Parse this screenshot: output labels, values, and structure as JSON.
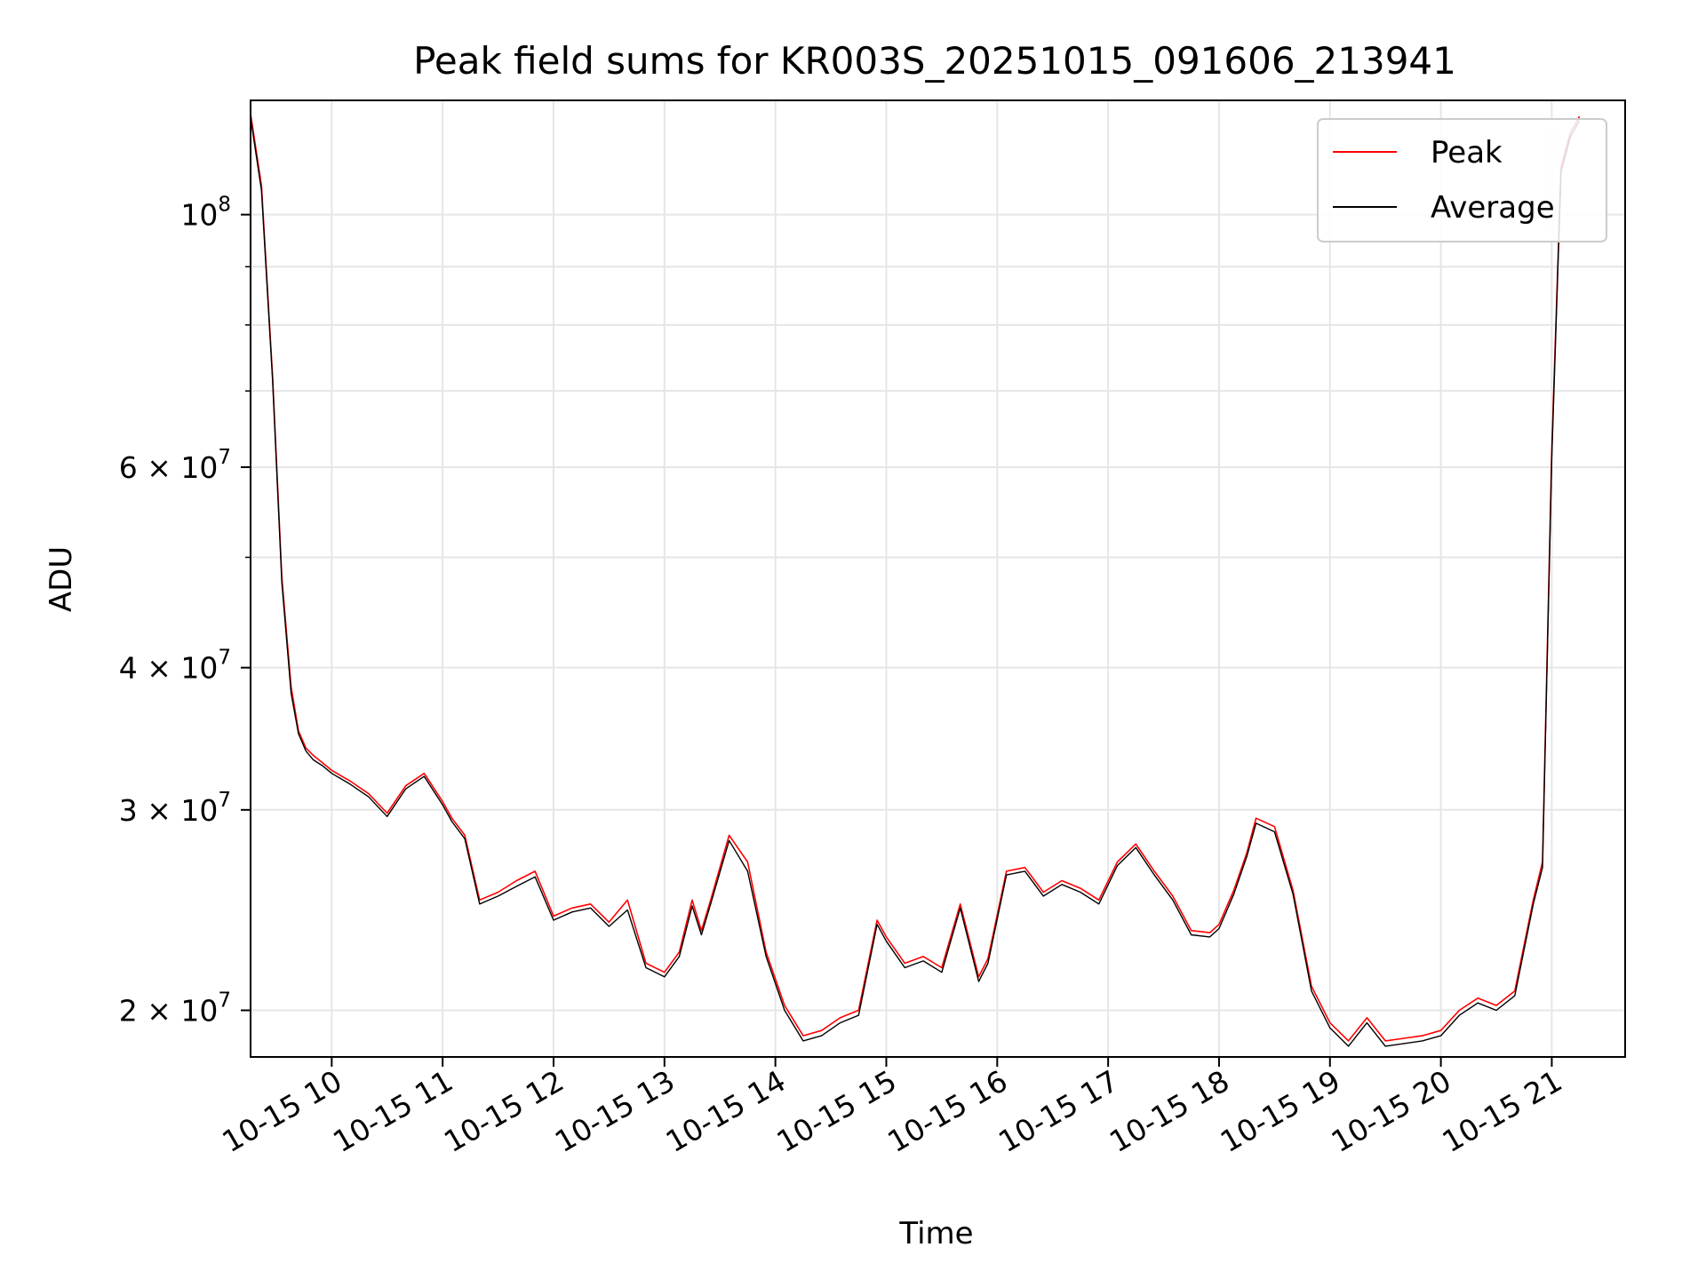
{
  "chart_data": {
    "type": "line",
    "title": "Peak field sums for KR003S_20251015_091606_213941",
    "xlabel": "Time",
    "ylabel": "ADU",
    "yscale": "log",
    "xlim": [
      "2025-10-15T09:16:06",
      "2025-10-15T21:39:41"
    ],
    "ylim": [
      18200000,
      126000000
    ],
    "grid": true,
    "legend_position": "top-right",
    "x_ticks": [
      {
        "value": "2025-10-15T10:00",
        "label": "10-15 10"
      },
      {
        "value": "2025-10-15T11:00",
        "label": "10-15 11"
      },
      {
        "value": "2025-10-15T12:00",
        "label": "10-15 12"
      },
      {
        "value": "2025-10-15T13:00",
        "label": "10-15 13"
      },
      {
        "value": "2025-10-15T14:00",
        "label": "10-15 14"
      },
      {
        "value": "2025-10-15T15:00",
        "label": "10-15 15"
      },
      {
        "value": "2025-10-15T16:00",
        "label": "10-15 16"
      },
      {
        "value": "2025-10-15T17:00",
        "label": "10-15 17"
      },
      {
        "value": "2025-10-15T18:00",
        "label": "10-15 18"
      },
      {
        "value": "2025-10-15T19:00",
        "label": "10-15 19"
      },
      {
        "value": "2025-10-15T20:00",
        "label": "10-15 20"
      },
      {
        "value": "2025-10-15T21:00",
        "label": "10-15 21"
      }
    ],
    "y_ticks": [
      {
        "value": 20000000,
        "mantissa": "2",
        "exponent": "7"
      },
      {
        "value": 30000000,
        "mantissa": "3",
        "exponent": "7"
      },
      {
        "value": 40000000,
        "mantissa": "4",
        "exponent": "7"
      },
      {
        "value": 60000000,
        "mantissa": "6",
        "exponent": "7"
      },
      {
        "value": 100000000,
        "mantissa": "",
        "exponent": "8"
      }
    ],
    "y_minor_ticks": [
      50000000,
      70000000,
      80000000,
      90000000
    ],
    "times_symbol": "×",
    "base": "10",
    "series": [
      {
        "name": "Peak",
        "color": "#ff0000",
        "x": [
          "2025-10-15T09:16",
          "2025-10-15T09:22",
          "2025-10-15T09:28",
          "2025-10-15T09:33",
          "2025-10-15T09:38",
          "2025-10-15T09:42",
          "2025-10-15T09:46",
          "2025-10-15T09:50",
          "2025-10-15T09:55",
          "2025-10-15T10:00",
          "2025-10-15T10:10",
          "2025-10-15T10:20",
          "2025-10-15T10:30",
          "2025-10-15T10:40",
          "2025-10-15T10:50",
          "2025-10-15T11:00",
          "2025-10-15T11:05",
          "2025-10-15T11:12",
          "2025-10-15T11:20",
          "2025-10-15T11:30",
          "2025-10-15T11:40",
          "2025-10-15T11:50",
          "2025-10-15T12:00",
          "2025-10-15T12:10",
          "2025-10-15T12:20",
          "2025-10-15T12:30",
          "2025-10-15T12:40",
          "2025-10-15T12:50",
          "2025-10-15T13:00",
          "2025-10-15T13:08",
          "2025-10-15T13:15",
          "2025-10-15T13:20",
          "2025-10-15T13:25",
          "2025-10-15T13:35",
          "2025-10-15T13:45",
          "2025-10-15T13:55",
          "2025-10-15T14:05",
          "2025-10-15T14:15",
          "2025-10-15T14:25",
          "2025-10-15T14:35",
          "2025-10-15T14:45",
          "2025-10-15T14:55",
          "2025-10-15T15:00",
          "2025-10-15T15:10",
          "2025-10-15T15:20",
          "2025-10-15T15:30",
          "2025-10-15T15:40",
          "2025-10-15T15:50",
          "2025-10-15T15:55",
          "2025-10-15T16:05",
          "2025-10-15T16:15",
          "2025-10-15T16:25",
          "2025-10-15T16:35",
          "2025-10-15T16:45",
          "2025-10-15T16:55",
          "2025-10-15T17:05",
          "2025-10-15T17:15",
          "2025-10-15T17:25",
          "2025-10-15T17:35",
          "2025-10-15T17:45",
          "2025-10-15T17:55",
          "2025-10-15T18:00",
          "2025-10-15T18:08",
          "2025-10-15T18:15",
          "2025-10-15T18:20",
          "2025-10-15T18:30",
          "2025-10-15T18:40",
          "2025-10-15T18:50",
          "2025-10-15T19:00",
          "2025-10-15T19:10",
          "2025-10-15T19:20",
          "2025-10-15T19:30",
          "2025-10-15T19:40",
          "2025-10-15T19:50",
          "2025-10-15T20:00",
          "2025-10-15T20:10",
          "2025-10-15T20:20",
          "2025-10-15T20:30",
          "2025-10-15T20:40",
          "2025-10-15T20:50",
          "2025-10-15T20:55",
          "2025-10-15T21:00",
          "2025-10-15T21:05",
          "2025-10-15T21:10",
          "2025-10-15T21:15"
        ],
        "y": [
          123000000,
          106000000,
          72000000,
          48000000,
          38500000,
          35200000,
          34000000,
          33500000,
          33000000,
          32500000,
          31800000,
          31000000,
          29800000,
          31500000,
          32300000,
          30500000,
          29500000,
          28500000,
          25000000,
          25400000,
          26000000,
          26500000,
          24200000,
          24600000,
          24800000,
          23900000,
          25000000,
          22000000,
          21600000,
          22500000,
          25000000,
          23500000,
          25000000,
          28500000,
          27000000,
          22500000,
          20200000,
          19000000,
          19200000,
          19700000,
          20000000,
          24000000,
          23200000,
          22000000,
          22300000,
          21800000,
          24800000,
          21400000,
          22200000,
          26500000,
          26700000,
          25400000,
          26000000,
          25600000,
          25000000,
          27000000,
          28000000,
          26500000,
          25200000,
          23500000,
          23400000,
          23800000,
          25500000,
          27500000,
          29500000,
          29000000,
          25500000,
          21000000,
          19500000,
          18800000,
          19700000,
          18800000,
          18900000,
          19000000,
          19200000,
          20000000,
          20500000,
          20200000,
          20800000,
          25000000,
          27000000,
          62000000,
          110000000,
          118000000,
          122000000
        ]
      },
      {
        "name": "Average",
        "color": "#000000",
        "x": [
          "2025-10-15T09:16",
          "2025-10-15T09:22",
          "2025-10-15T09:28",
          "2025-10-15T09:33",
          "2025-10-15T09:38",
          "2025-10-15T09:42",
          "2025-10-15T09:46",
          "2025-10-15T09:50",
          "2025-10-15T09:55",
          "2025-10-15T10:00",
          "2025-10-15T10:10",
          "2025-10-15T10:20",
          "2025-10-15T10:30",
          "2025-10-15T10:40",
          "2025-10-15T10:50",
          "2025-10-15T11:00",
          "2025-10-15T11:05",
          "2025-10-15T11:12",
          "2025-10-15T11:20",
          "2025-10-15T11:30",
          "2025-10-15T11:40",
          "2025-10-15T11:50",
          "2025-10-15T12:00",
          "2025-10-15T12:10",
          "2025-10-15T12:20",
          "2025-10-15T12:30",
          "2025-10-15T12:40",
          "2025-10-15T12:50",
          "2025-10-15T13:00",
          "2025-10-15T13:08",
          "2025-10-15T13:15",
          "2025-10-15T13:20",
          "2025-10-15T13:25",
          "2025-10-15T13:35",
          "2025-10-15T13:45",
          "2025-10-15T13:55",
          "2025-10-15T14:05",
          "2025-10-15T14:15",
          "2025-10-15T14:25",
          "2025-10-15T14:35",
          "2025-10-15T14:45",
          "2025-10-15T14:55",
          "2025-10-15T15:00",
          "2025-10-15T15:10",
          "2025-10-15T15:20",
          "2025-10-15T15:30",
          "2025-10-15T15:40",
          "2025-10-15T15:50",
          "2025-10-15T15:55",
          "2025-10-15T16:05",
          "2025-10-15T16:15",
          "2025-10-15T16:25",
          "2025-10-15T16:35",
          "2025-10-15T16:45",
          "2025-10-15T16:55",
          "2025-10-15T17:05",
          "2025-10-15T17:15",
          "2025-10-15T17:25",
          "2025-10-15T17:35",
          "2025-10-15T17:45",
          "2025-10-15T17:55",
          "2025-10-15T18:00",
          "2025-10-15T18:08",
          "2025-10-15T18:15",
          "2025-10-15T18:20",
          "2025-10-15T18:30",
          "2025-10-15T18:40",
          "2025-10-15T18:50",
          "2025-10-15T19:00",
          "2025-10-15T19:10",
          "2025-10-15T19:20",
          "2025-10-15T19:30",
          "2025-10-15T19:40",
          "2025-10-15T19:50",
          "2025-10-15T20:00",
          "2025-10-15T20:10",
          "2025-10-15T20:20",
          "2025-10-15T20:30",
          "2025-10-15T20:40",
          "2025-10-15T20:50",
          "2025-10-15T20:55",
          "2025-10-15T21:00",
          "2025-10-15T21:05",
          "2025-10-15T21:10",
          "2025-10-15T21:15"
        ],
        "y": [
          122000000,
          105000000,
          71500000,
          47500000,
          38000000,
          35000000,
          33800000,
          33200000,
          32800000,
          32300000,
          31600000,
          30800000,
          29600000,
          31300000,
          32100000,
          30300000,
          29300000,
          28300000,
          24800000,
          25200000,
          25700000,
          26200000,
          24000000,
          24400000,
          24600000,
          23700000,
          24500000,
          21800000,
          21400000,
          22300000,
          24700000,
          23300000,
          24800000,
          28200000,
          26500000,
          22300000,
          20000000,
          18800000,
          19000000,
          19500000,
          19800000,
          23800000,
          23000000,
          21800000,
          22100000,
          21600000,
          24600000,
          21200000,
          22000000,
          26300000,
          26500000,
          25200000,
          25800000,
          25400000,
          24800000,
          26800000,
          27800000,
          26300000,
          25000000,
          23300000,
          23200000,
          23600000,
          25300000,
          27300000,
          29200000,
          28700000,
          25300000,
          20800000,
          19300000,
          18600000,
          19500000,
          18600000,
          18700000,
          18800000,
          19000000,
          19800000,
          20300000,
          20000000,
          20600000,
          24800000,
          26700000,
          61000000,
          109000000,
          117000000,
          121000000
        ]
      }
    ]
  }
}
